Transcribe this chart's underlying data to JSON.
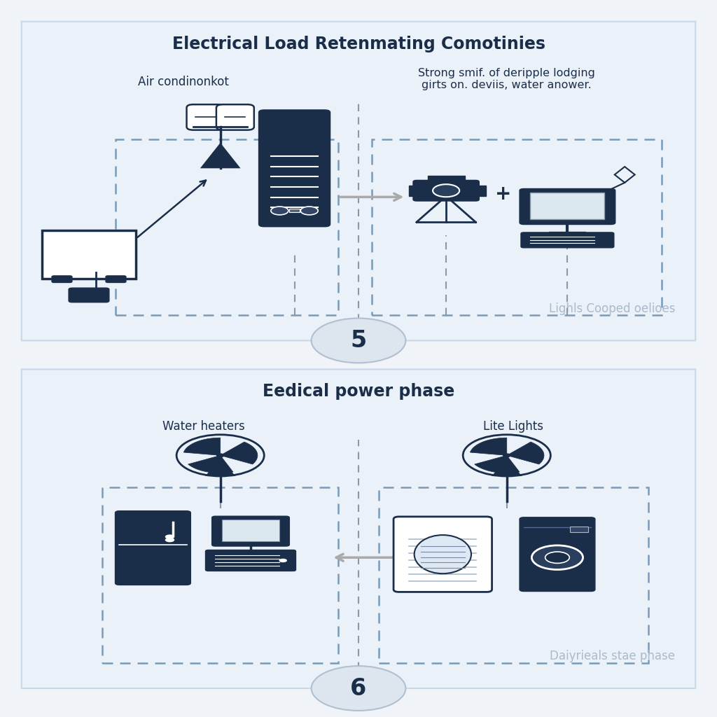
{
  "bg_color": "#f0f4f8",
  "panel_bg": "#eaf1f8",
  "dark_navy": "#1a2e4a",
  "gray_arrow": "#999999",
  "circle_bg": "#dde5ee",
  "panel1_title": "Electrical Load Retenmating Comotinies",
  "panel1_label_left": "Air condinonkot",
  "panel1_label_right": "Strong smif. of deripple lodging\ngirts on. deviis, water anower.",
  "panel1_watermark": "Lighls Cooped oelioes",
  "panel1_number": "5",
  "panel2_title": "Eedical power phase",
  "panel2_label_left": "Water heaters",
  "panel2_label_right": "Lite Lights",
  "panel2_watermark": "Daiyrieals stae phase",
  "panel2_number": "6",
  "title_fontsize": 17,
  "label_fontsize": 12,
  "watermark_fontsize": 12,
  "number_fontsize": 24
}
